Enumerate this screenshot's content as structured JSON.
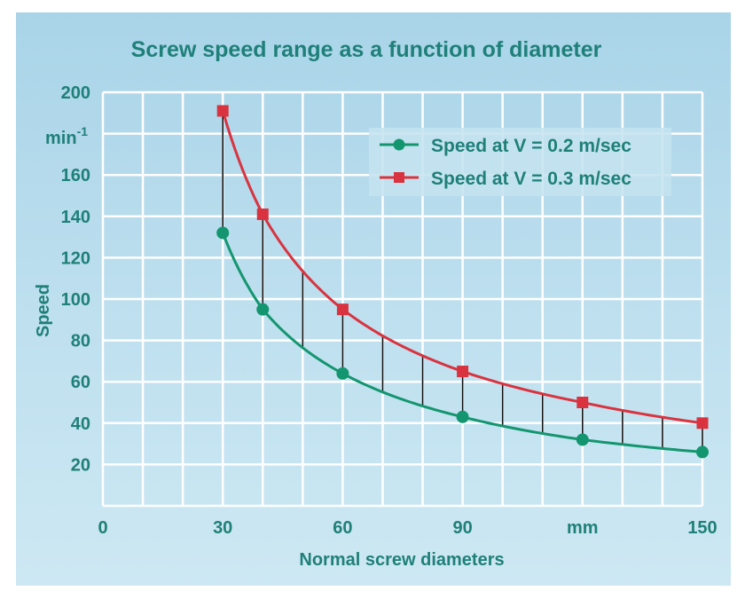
{
  "chart_data": {
    "type": "line",
    "title": "Screw speed range as a function of diameter",
    "xlabel": "Normal screw diameters",
    "ylabel": "Speed",
    "y_unit": "min",
    "y_unit_sup": "-1",
    "xlim": [
      0,
      150
    ],
    "ylim": [
      0,
      200
    ],
    "x_ticks": [
      {
        "value": 0,
        "label": "0"
      },
      {
        "value": 30,
        "label": "30"
      },
      {
        "value": 60,
        "label": "60"
      },
      {
        "value": 90,
        "label": "90"
      },
      {
        "value": 120,
        "label": "mm"
      },
      {
        "value": 150,
        "label": "150"
      }
    ],
    "y_ticks": [
      {
        "value": 200,
        "label": "200"
      },
      {
        "value": 160,
        "label": "160"
      },
      {
        "value": 140,
        "label": "140"
      },
      {
        "value": 120,
        "label": "120"
      },
      {
        "value": 100,
        "label": "100"
      },
      {
        "value": 80,
        "label": "80"
      },
      {
        "value": 60,
        "label": "60"
      },
      {
        "value": 40,
        "label": "40"
      },
      {
        "value": 20,
        "label": "20"
      }
    ],
    "grid_x_step": 10,
    "grid_y_step": 20,
    "grid": true,
    "legend_position": "top-right",
    "range_lines_x": [
      30,
      40,
      50,
      60,
      70,
      80,
      90,
      100,
      110,
      120,
      130,
      140,
      150
    ],
    "series": [
      {
        "name": "Speed at V = 0.2 m/sec",
        "color": "#13966f",
        "marker": "circle",
        "x": [
          30,
          40,
          60,
          90,
          120,
          150
        ],
        "values": [
          132,
          95,
          64,
          43,
          32,
          26
        ]
      },
      {
        "name": "Speed at V = 0.3 m/sec",
        "color": "#d9333f",
        "marker": "square",
        "x": [
          30,
          40,
          60,
          90,
          120,
          150
        ],
        "values": [
          191,
          141,
          95,
          65,
          50,
          40
        ]
      }
    ]
  },
  "colors": {
    "text": "#1f8079",
    "grid": "#ffffff",
    "range_line": "#111111",
    "legend_bg": "#c4e3f0"
  }
}
